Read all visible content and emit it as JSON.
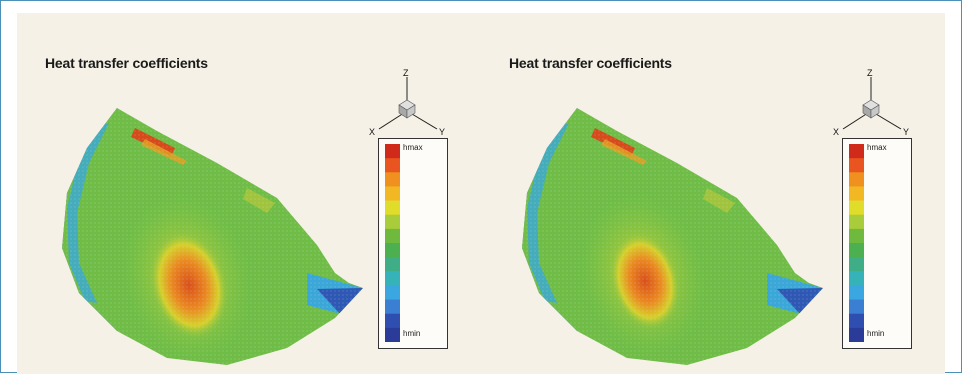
{
  "panels": [
    {
      "title": "Heat transfer coefficients",
      "axes": {
        "z": "Z",
        "x": "X",
        "y": "Y"
      },
      "legend": {
        "max_label": "hmax",
        "min_label": "hmin"
      }
    },
    {
      "title": "Heat transfer coefficients",
      "axes": {
        "z": "Z",
        "x": "X",
        "y": "Y"
      },
      "legend": {
        "max_label": "hmax",
        "min_label": "hmin"
      }
    }
  ],
  "colors": {
    "frame_border": "#4a90b8",
    "panel_background": "#f6f1e6",
    "colorbar": [
      "#d02a1a",
      "#e85520",
      "#f0901e",
      "#f2b824",
      "#e0dc2a",
      "#a8cc3a",
      "#6fba3e",
      "#4caf50",
      "#3fae86",
      "#35b3b8",
      "#3aa7e0",
      "#3a7fd2",
      "#2f4fb0",
      "#2a3c98"
    ]
  }
}
